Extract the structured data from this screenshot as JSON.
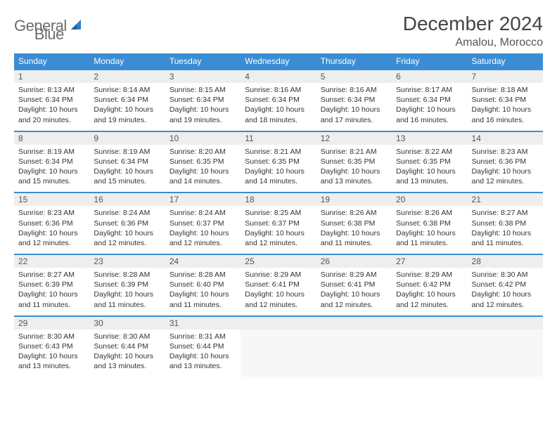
{
  "brand": {
    "part1": "General",
    "part2": "Blue"
  },
  "title": "December 2024",
  "location": "Amalou, Morocco",
  "colors": {
    "header_bg": "#3a8dd3",
    "header_text": "#ffffff",
    "date_bg": "#eeeeee",
    "border": "#3a8dd3",
    "brand_gray": "#6c6c6c",
    "brand_blue": "#2a7fcb"
  },
  "day_headers": [
    "Sunday",
    "Monday",
    "Tuesday",
    "Wednesday",
    "Thursday",
    "Friday",
    "Saturday"
  ],
  "weeks": [
    [
      {
        "date": "1",
        "sunrise": "Sunrise: 8:13 AM",
        "sunset": "Sunset: 6:34 PM",
        "daylight": "Daylight: 10 hours and 20 minutes."
      },
      {
        "date": "2",
        "sunrise": "Sunrise: 8:14 AM",
        "sunset": "Sunset: 6:34 PM",
        "daylight": "Daylight: 10 hours and 19 minutes."
      },
      {
        "date": "3",
        "sunrise": "Sunrise: 8:15 AM",
        "sunset": "Sunset: 6:34 PM",
        "daylight": "Daylight: 10 hours and 19 minutes."
      },
      {
        "date": "4",
        "sunrise": "Sunrise: 8:16 AM",
        "sunset": "Sunset: 6:34 PM",
        "daylight": "Daylight: 10 hours and 18 minutes."
      },
      {
        "date": "5",
        "sunrise": "Sunrise: 8:16 AM",
        "sunset": "Sunset: 6:34 PM",
        "daylight": "Daylight: 10 hours and 17 minutes."
      },
      {
        "date": "6",
        "sunrise": "Sunrise: 8:17 AM",
        "sunset": "Sunset: 6:34 PM",
        "daylight": "Daylight: 10 hours and 16 minutes."
      },
      {
        "date": "7",
        "sunrise": "Sunrise: 8:18 AM",
        "sunset": "Sunset: 6:34 PM",
        "daylight": "Daylight: 10 hours and 16 minutes."
      }
    ],
    [
      {
        "date": "8",
        "sunrise": "Sunrise: 8:19 AM",
        "sunset": "Sunset: 6:34 PM",
        "daylight": "Daylight: 10 hours and 15 minutes."
      },
      {
        "date": "9",
        "sunrise": "Sunrise: 8:19 AM",
        "sunset": "Sunset: 6:34 PM",
        "daylight": "Daylight: 10 hours and 15 minutes."
      },
      {
        "date": "10",
        "sunrise": "Sunrise: 8:20 AM",
        "sunset": "Sunset: 6:35 PM",
        "daylight": "Daylight: 10 hours and 14 minutes."
      },
      {
        "date": "11",
        "sunrise": "Sunrise: 8:21 AM",
        "sunset": "Sunset: 6:35 PM",
        "daylight": "Daylight: 10 hours and 14 minutes."
      },
      {
        "date": "12",
        "sunrise": "Sunrise: 8:21 AM",
        "sunset": "Sunset: 6:35 PM",
        "daylight": "Daylight: 10 hours and 13 minutes."
      },
      {
        "date": "13",
        "sunrise": "Sunrise: 8:22 AM",
        "sunset": "Sunset: 6:35 PM",
        "daylight": "Daylight: 10 hours and 13 minutes."
      },
      {
        "date": "14",
        "sunrise": "Sunrise: 8:23 AM",
        "sunset": "Sunset: 6:36 PM",
        "daylight": "Daylight: 10 hours and 12 minutes."
      }
    ],
    [
      {
        "date": "15",
        "sunrise": "Sunrise: 8:23 AM",
        "sunset": "Sunset: 6:36 PM",
        "daylight": "Daylight: 10 hours and 12 minutes."
      },
      {
        "date": "16",
        "sunrise": "Sunrise: 8:24 AM",
        "sunset": "Sunset: 6:36 PM",
        "daylight": "Daylight: 10 hours and 12 minutes."
      },
      {
        "date": "17",
        "sunrise": "Sunrise: 8:24 AM",
        "sunset": "Sunset: 6:37 PM",
        "daylight": "Daylight: 10 hours and 12 minutes."
      },
      {
        "date": "18",
        "sunrise": "Sunrise: 8:25 AM",
        "sunset": "Sunset: 6:37 PM",
        "daylight": "Daylight: 10 hours and 12 minutes."
      },
      {
        "date": "19",
        "sunrise": "Sunrise: 8:26 AM",
        "sunset": "Sunset: 6:38 PM",
        "daylight": "Daylight: 10 hours and 11 minutes."
      },
      {
        "date": "20",
        "sunrise": "Sunrise: 8:26 AM",
        "sunset": "Sunset: 6:38 PM",
        "daylight": "Daylight: 10 hours and 11 minutes."
      },
      {
        "date": "21",
        "sunrise": "Sunrise: 8:27 AM",
        "sunset": "Sunset: 6:38 PM",
        "daylight": "Daylight: 10 hours and 11 minutes."
      }
    ],
    [
      {
        "date": "22",
        "sunrise": "Sunrise: 8:27 AM",
        "sunset": "Sunset: 6:39 PM",
        "daylight": "Daylight: 10 hours and 11 minutes."
      },
      {
        "date": "23",
        "sunrise": "Sunrise: 8:28 AM",
        "sunset": "Sunset: 6:39 PM",
        "daylight": "Daylight: 10 hours and 11 minutes."
      },
      {
        "date": "24",
        "sunrise": "Sunrise: 8:28 AM",
        "sunset": "Sunset: 6:40 PM",
        "daylight": "Daylight: 10 hours and 11 minutes."
      },
      {
        "date": "25",
        "sunrise": "Sunrise: 8:29 AM",
        "sunset": "Sunset: 6:41 PM",
        "daylight": "Daylight: 10 hours and 12 minutes."
      },
      {
        "date": "26",
        "sunrise": "Sunrise: 8:29 AM",
        "sunset": "Sunset: 6:41 PM",
        "daylight": "Daylight: 10 hours and 12 minutes."
      },
      {
        "date": "27",
        "sunrise": "Sunrise: 8:29 AM",
        "sunset": "Sunset: 6:42 PM",
        "daylight": "Daylight: 10 hours and 12 minutes."
      },
      {
        "date": "28",
        "sunrise": "Sunrise: 8:30 AM",
        "sunset": "Sunset: 6:42 PM",
        "daylight": "Daylight: 10 hours and 12 minutes."
      }
    ],
    [
      {
        "date": "29",
        "sunrise": "Sunrise: 8:30 AM",
        "sunset": "Sunset: 6:43 PM",
        "daylight": "Daylight: 10 hours and 13 minutes."
      },
      {
        "date": "30",
        "sunrise": "Sunrise: 8:30 AM",
        "sunset": "Sunset: 6:44 PM",
        "daylight": "Daylight: 10 hours and 13 minutes."
      },
      {
        "date": "31",
        "sunrise": "Sunrise: 8:31 AM",
        "sunset": "Sunset: 6:44 PM",
        "daylight": "Daylight: 10 hours and 13 minutes."
      },
      null,
      null,
      null,
      null
    ]
  ]
}
